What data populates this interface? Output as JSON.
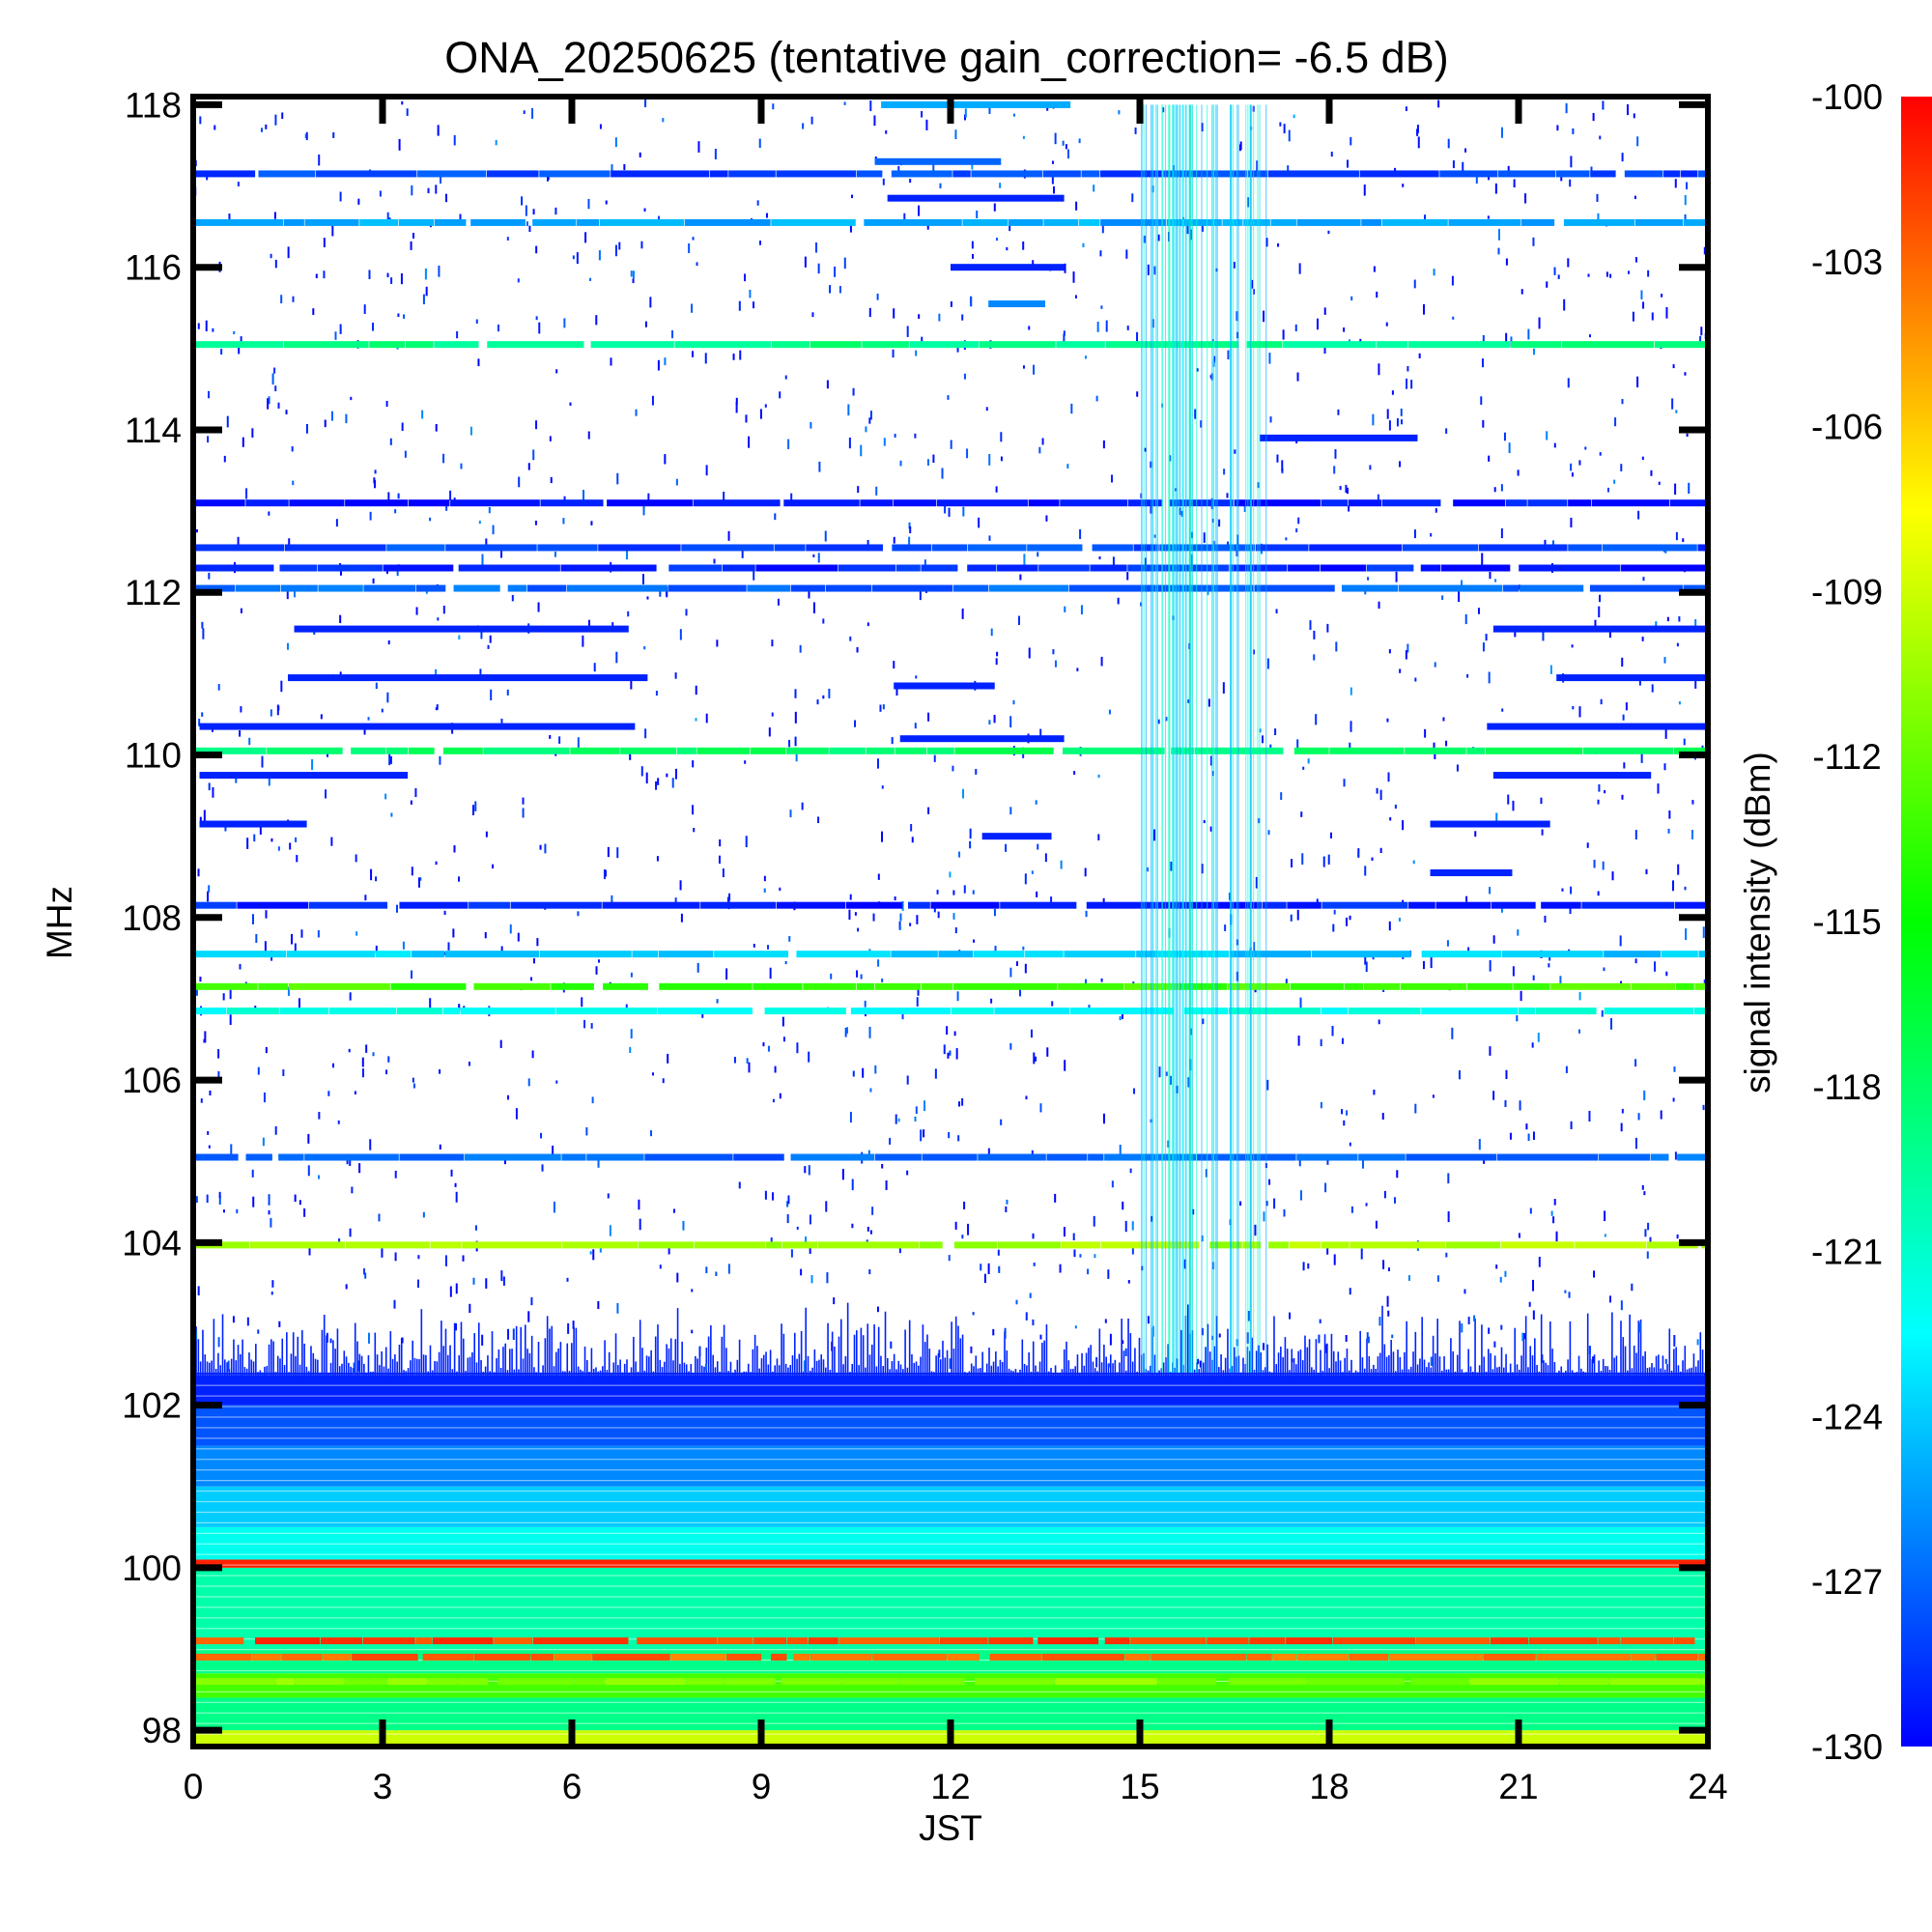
{
  "chart_data": {
    "type": "heatmap",
    "title": "ONA_20250625 (tentative gain_correction= -6.5 dB)",
    "xlabel": "JST",
    "ylabel": "MHz",
    "colorbar_label": "signal intensity (dBm)",
    "xlim": [
      0,
      24
    ],
    "ylim": [
      97.8,
      118.1
    ],
    "x_ticks": [
      "0",
      "3",
      "6",
      "9",
      "12",
      "15",
      "18",
      "21",
      "24"
    ],
    "y_ticks": [
      "98",
      "100",
      "102",
      "104",
      "106",
      "108",
      "110",
      "112",
      "114",
      "116",
      "118"
    ],
    "colorbar_range": [
      -130,
      -100
    ],
    "colorbar_ticks": [
      "-100",
      "-103",
      "-106",
      "-109",
      "-112",
      "-115",
      "-118",
      "-121",
      "-124",
      "-127",
      "-130"
    ],
    "colormap": [
      "#0000ff",
      "#0080ff",
      "#00ffff",
      "#00ff80",
      "#00ff00",
      "#80ff00",
      "#ffff00",
      "#ff8000",
      "#ff0000"
    ],
    "background_bands": [
      {
        "f0": 97.8,
        "f1": 98.0,
        "dbm": -109
      },
      {
        "f0": 98.0,
        "f1": 98.4,
        "dbm": -119
      },
      {
        "f0": 98.4,
        "f1": 98.7,
        "dbm": -113
      },
      {
        "f0": 98.7,
        "f1": 99.0,
        "dbm": -119
      },
      {
        "f0": 99.0,
        "f1": 100.0,
        "dbm": -120
      },
      {
        "f0": 100.0,
        "f1": 100.1,
        "dbm": -101
      },
      {
        "f0": 100.1,
        "f1": 100.5,
        "dbm": -122
      },
      {
        "f0": 100.5,
        "f1": 101.0,
        "dbm": -124
      },
      {
        "f0": 101.0,
        "f1": 101.5,
        "dbm": -126
      },
      {
        "f0": 101.5,
        "f1": 102.0,
        "dbm": -127.5
      },
      {
        "f0": 102.0,
        "f1": 102.4,
        "dbm": -129
      }
    ],
    "stations": [
      {
        "mhz": 98.6,
        "dbm": -111
      },
      {
        "mhz": 98.9,
        "dbm": -103
      },
      {
        "mhz": 99.1,
        "dbm": -102
      },
      {
        "mhz": 103.97,
        "dbm": -110
      },
      {
        "mhz": 105.05,
        "dbm": -127
      },
      {
        "mhz": 106.85,
        "dbm": -122
      },
      {
        "mhz": 107.15,
        "dbm": -113
      },
      {
        "mhz": 107.55,
        "dbm": -124
      },
      {
        "mhz": 108.15,
        "dbm": -129
      },
      {
        "mhz": 110.05,
        "dbm": -118
      },
      {
        "mhz": 112.05,
        "dbm": -127
      },
      {
        "mhz": 112.3,
        "dbm": -129
      },
      {
        "mhz": 112.55,
        "dbm": -128
      },
      {
        "mhz": 113.1,
        "dbm": -129.5
      },
      {
        "mhz": 115.05,
        "dbm": -119
      },
      {
        "mhz": 116.55,
        "dbm": -125
      },
      {
        "mhz": 117.15,
        "dbm": -128
      }
    ],
    "intermittent_tracks": [
      {
        "mhz": 111.55,
        "start": 1.6,
        "end": 6.9,
        "dbm": -129
      },
      {
        "mhz": 111.55,
        "start": 20.6,
        "end": 24.0,
        "dbm": -129
      },
      {
        "mhz": 110.95,
        "start": 1.5,
        "end": 7.2,
        "dbm": -129
      },
      {
        "mhz": 110.95,
        "start": 21.6,
        "end": 24.0,
        "dbm": -129
      },
      {
        "mhz": 110.35,
        "start": 0.1,
        "end": 7.0,
        "dbm": -129
      },
      {
        "mhz": 110.35,
        "start": 20.5,
        "end": 24.0,
        "dbm": -129
      },
      {
        "mhz": 109.75,
        "start": 0.1,
        "end": 3.4,
        "dbm": -129
      },
      {
        "mhz": 109.75,
        "start": 20.6,
        "end": 23.1,
        "dbm": -129
      },
      {
        "mhz": 109.15,
        "start": 0.1,
        "end": 1.8,
        "dbm": -129
      },
      {
        "mhz": 109.15,
        "start": 19.6,
        "end": 21.5,
        "dbm": -129
      },
      {
        "mhz": 108.55,
        "start": 19.6,
        "end": 20.9,
        "dbm": -129
      },
      {
        "mhz": 113.9,
        "start": 16.9,
        "end": 19.4,
        "dbm": -129
      },
      {
        "mhz": 117.3,
        "start": 10.8,
        "end": 12.8,
        "dbm": -127
      },
      {
        "mhz": 116.85,
        "start": 11.0,
        "end": 13.8,
        "dbm": -129
      },
      {
        "mhz": 116.0,
        "start": 12.0,
        "end": 13.8,
        "dbm": -129
      },
      {
        "mhz": 115.55,
        "start": 12.6,
        "end": 13.5,
        "dbm": -126
      },
      {
        "mhz": 110.2,
        "start": 11.2,
        "end": 13.8,
        "dbm": -129
      },
      {
        "mhz": 110.85,
        "start": 11.1,
        "end": 12.7,
        "dbm": -129
      },
      {
        "mhz": 109.0,
        "start": 12.5,
        "end": 13.6,
        "dbm": -129
      },
      {
        "mhz": 118.0,
        "start": 10.9,
        "end": 13.9,
        "dbm": -125
      }
    ],
    "interference_window": {
      "start": 15.0,
      "end": 17.0
    },
    "grid": false
  }
}
